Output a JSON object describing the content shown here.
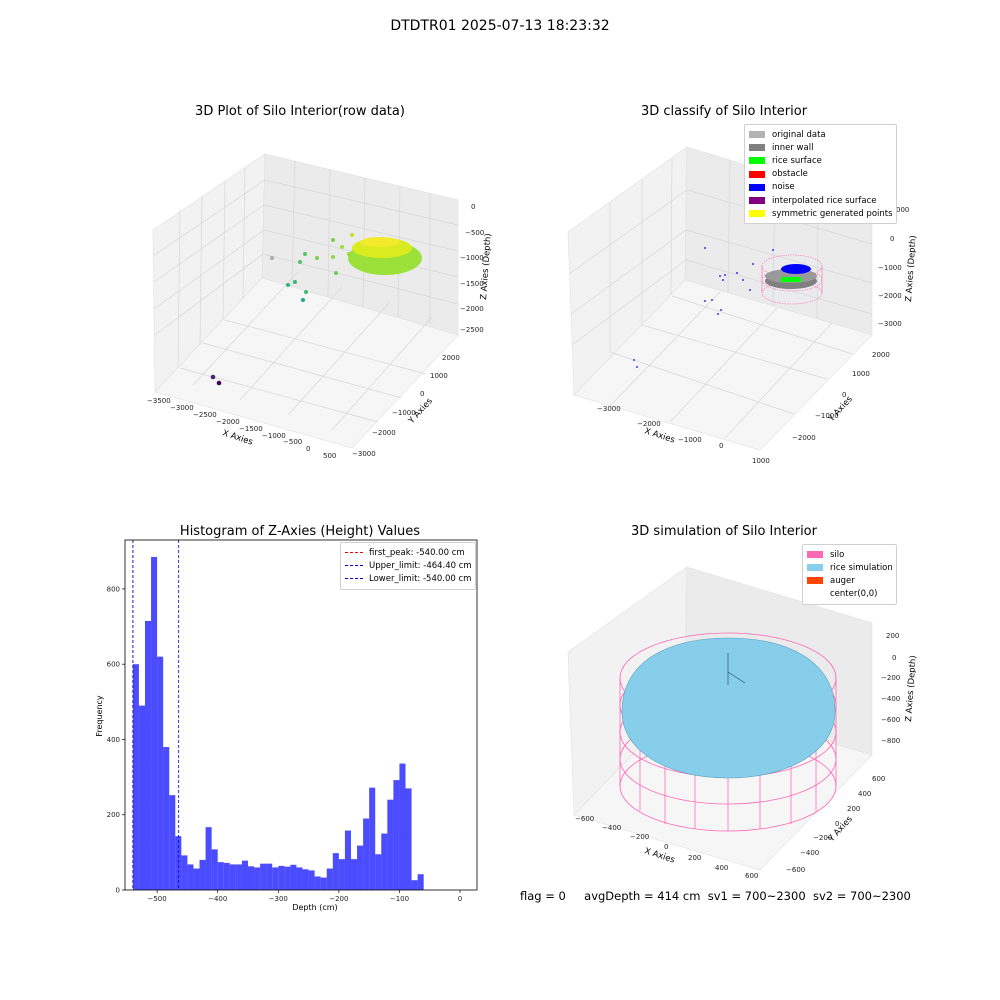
{
  "figure": {
    "suptitle": "DTDTR01 2025-07-13 18:23:32",
    "footer": {
      "flag": "flag = 0",
      "avg_depth": "avgDepth = 414 cm",
      "sv1": "sv1 = 700~2300",
      "sv2": "sv2 = 700~2300"
    }
  },
  "panels": {
    "raw": {
      "title": "3D Plot of Silo Interior(row data)",
      "xlabel": "X Axies",
      "ylabel": "Y Axies",
      "zlabel": "Z Axies (Depth)",
      "xticks": [
        "−3500",
        "−3000",
        "−2500",
        "−2000",
        "−1500",
        "−1000",
        "−500",
        "0",
        "500"
      ],
      "yticks": [
        "2000",
        "1000",
        "0",
        "−1000",
        "−2000",
        "−3000"
      ],
      "zticks": [
        "0",
        "−500",
        "−1000",
        "−1500",
        "−2000",
        "−2500"
      ]
    },
    "classify": {
      "title": "3D classify of Silo Interior",
      "xlabel": "X Axies",
      "ylabel": "Y Axies",
      "zlabel": "Z Axies (Depth)",
      "xticks": [
        "−3000",
        "−2000",
        "−1000",
        "0",
        "1000"
      ],
      "yticks": [
        "2000",
        "1000",
        "0",
        "−1000",
        "−2000"
      ],
      "zticks": [
        "0",
        "−1000",
        "−2000",
        "−3000"
      ],
      "ztick_partial": "000",
      "legend": [
        {
          "label": "original data",
          "color": "#b3b3b3"
        },
        {
          "label": "inner wall",
          "color": "#808080"
        },
        {
          "label": "rice surface",
          "color": "#00ff00"
        },
        {
          "label": "obstacle",
          "color": "#ff0000"
        },
        {
          "label": "noise",
          "color": "#0000ff"
        },
        {
          "label": "interpolated rice surface",
          "color": "#800080"
        },
        {
          "label": "symmetric generated points",
          "color": "#ffff00"
        }
      ]
    },
    "simulation": {
      "title": "3D simulation of Silo Interior",
      "xlabel": "X Axies",
      "ylabel": "Y Axies",
      "zlabel": "Z Axies (Depth)",
      "xticks": [
        "−600",
        "−400",
        "−200",
        "0",
        "200",
        "400",
        "600"
      ],
      "yticks": [
        "600",
        "400",
        "200",
        "0",
        "−200",
        "−400",
        "−600"
      ],
      "zticks": [
        "200",
        "0",
        "−200",
        "−400",
        "−600",
        "−800"
      ],
      "legend": [
        {
          "label": "silo",
          "color": "#ff69b4"
        },
        {
          "label": "rice simulation",
          "color": "#87ceeb"
        },
        {
          "label": "auger",
          "color": "#ff4500"
        },
        {
          "label": "center(0,0)",
          "color": ""
        }
      ]
    }
  },
  "chart_data": {
    "type": "bar",
    "title": "Histogram of Z-Axies (Height) Values",
    "xlabel": "Depth (cm)",
    "ylabel": "Frequency",
    "xlim": [
      -553,
      28
    ],
    "ylim": [
      0,
      930
    ],
    "xticks": [
      -500,
      -400,
      -300,
      -200,
      -100,
      0
    ],
    "xtick_labels": [
      "−500",
      "−400",
      "−300",
      "−200",
      "−100",
      "0"
    ],
    "yticks": [
      0,
      200,
      400,
      600,
      800
    ],
    "bin_width": 10,
    "bin_start": -540,
    "values": [
      600,
      490,
      715,
      885,
      620,
      380,
      252,
      143,
      92,
      68,
      57,
      80,
      167,
      108,
      74,
      72,
      68,
      68,
      78,
      63,
      60,
      70,
      70,
      60,
      64,
      62,
      67,
      60,
      55,
      52,
      36,
      33,
      57,
      98,
      82,
      158,
      82,
      118,
      190,
      272,
      95,
      150,
      240,
      292,
      336,
      270,
      26,
      42
    ],
    "bar_color": "#0000ff",
    "vlines": [
      {
        "name": "first_peak",
        "x": -540.0,
        "label": "first_peak: -540.00 cm",
        "color": "#ff0000"
      },
      {
        "name": "upper_limit",
        "x": -464.4,
        "label": "Upper_limit: -464.40 cm",
        "color": "#0000cc"
      },
      {
        "name": "lower_limit",
        "x": -540.0,
        "label": "Lower_limit: -540.00 cm",
        "color": "#0000cc"
      }
    ],
    "legend": [
      "first_peak: -540.00 cm",
      "Upper_limit: -464.40 cm",
      "Lower_limit: -540.00 cm"
    ]
  }
}
